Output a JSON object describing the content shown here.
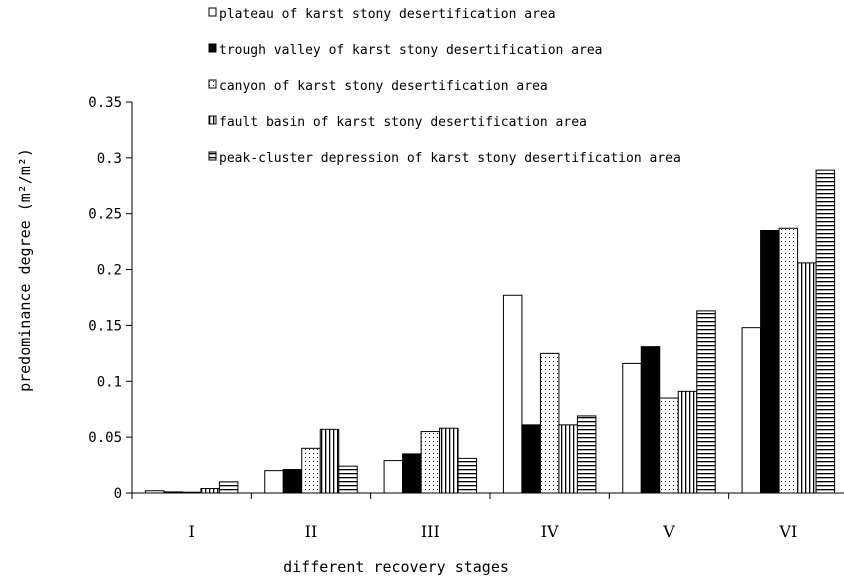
{
  "chart_data": {
    "type": "bar",
    "xlabel": "different recovery stages",
    "ylabel": "predominance degree (m²/m²)",
    "ylim": [
      0,
      0.35
    ],
    "yticks": [
      "0",
      "0.05",
      "0.1",
      "0.15",
      "0.2",
      "0.25",
      "0.3",
      "0.35"
    ],
    "ytick_values": [
      0,
      0.05,
      0.1,
      0.15,
      0.2,
      0.25,
      0.3,
      0.35
    ],
    "categories": [
      "I",
      "II",
      "III",
      "IV",
      "V",
      "VI"
    ],
    "grid": false,
    "legend_position": "top",
    "series": [
      {
        "name": "plateau of karst stony desertification area",
        "pattern": "white",
        "values": [
          0.002,
          0.02,
          0.029,
          0.177,
          0.116,
          0.148
        ]
      },
      {
        "name": "trough valley of karst stony desertification area",
        "pattern": "black",
        "values": [
          0.001,
          0.021,
          0.035,
          0.061,
          0.131,
          0.235
        ]
      },
      {
        "name": "canyon of karst stony desertification area",
        "pattern": "dots",
        "values": [
          0.0,
          0.04,
          0.055,
          0.125,
          0.085,
          0.237
        ]
      },
      {
        "name": "fault basin of karst stony desertification area",
        "pattern": "vertical",
        "values": [
          0.004,
          0.057,
          0.058,
          0.061,
          0.091,
          0.206
        ]
      },
      {
        "name": "peak-cluster depression of karst stony desertification area",
        "pattern": "horizontal",
        "values": [
          0.01,
          0.024,
          0.031,
          0.069,
          0.163,
          0.289
        ]
      }
    ]
  }
}
